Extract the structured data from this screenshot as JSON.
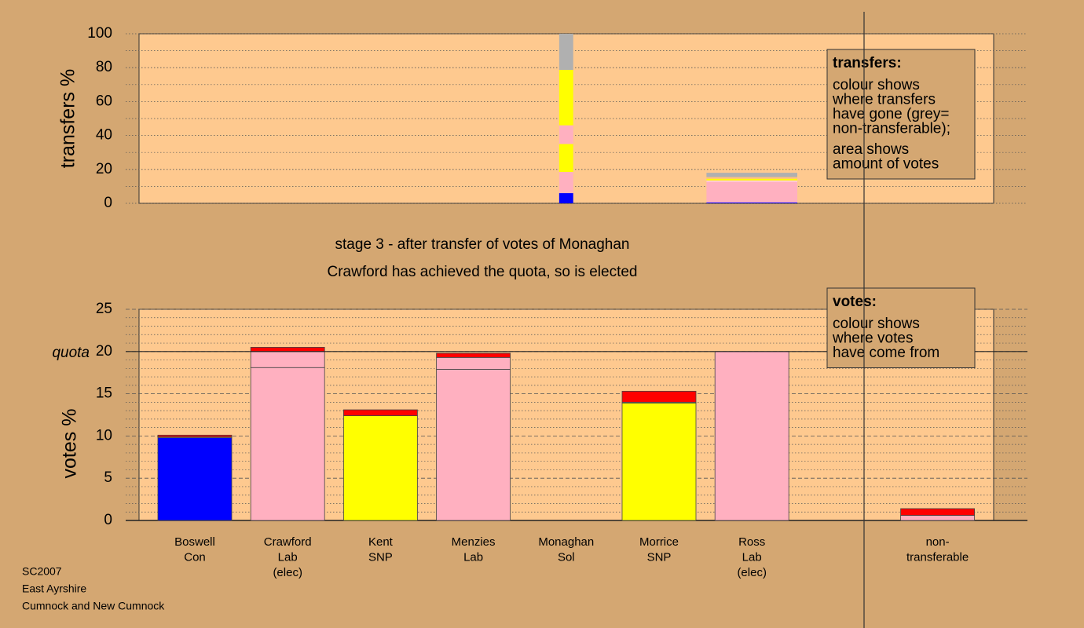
{
  "chart_data": [
    {
      "type": "transfer_bar",
      "ylabel": "transfers %",
      "ylim": [
        0,
        100
      ],
      "yticks": [
        0,
        20,
        40,
        60,
        80,
        100
      ],
      "minor_yticks": [
        10,
        30,
        50,
        70,
        90
      ],
      "legend": {
        "title": "transfers:",
        "paragraphs": [
          [
            "colour shows",
            "where transfers",
            "have gone (grey=",
            "non-transferable);"
          ],
          [
            "area shows",
            "amount of votes"
          ]
        ]
      },
      "bars": [
        {
          "category": 4,
          "width": 0.19,
          "segments": [
            {
              "color": "#0000ff",
              "value": 6
            },
            {
              "color": "#ffb0c0",
              "value": 12.5
            },
            {
              "color": "#ffff00",
              "value": 16.5
            },
            {
              "color": "#ffb0c0",
              "value": 11
            },
            {
              "color": "#ffff00",
              "value": 32.7
            },
            {
              "color": "#b0b0b0",
              "value": 21.3
            }
          ]
        },
        {
          "category": 6,
          "width": 1.23,
          "segments": [
            {
              "color": "#0000ff",
              "value": 0.5
            },
            {
              "color": "#ffb0c0",
              "value": 12
            },
            {
              "color": "#ffc8d0",
              "value": 1
            },
            {
              "color": "#ffff00",
              "value": 1
            },
            {
              "color": "#ffc080",
              "value": 1
            },
            {
              "color": "#b0b0b0",
              "value": 2.5
            }
          ]
        }
      ]
    },
    {
      "type": "stacked_bar",
      "title": [
        "stage 3 - after transfer of votes of Monaghan",
        "Crawford has achieved the quota, so is elected"
      ],
      "ylabel": "votes %",
      "ylim": [
        0,
        25
      ],
      "yticks": [
        0,
        5,
        10,
        15,
        20,
        25
      ],
      "minor_yticks": [
        1,
        2,
        3,
        4,
        6,
        7,
        8,
        9,
        11,
        12,
        13,
        14,
        16,
        17,
        18,
        19,
        21,
        22,
        23,
        24
      ],
      "quota": {
        "value": 20,
        "label": "quota"
      },
      "legend": {
        "title": "votes:",
        "paragraphs": [
          [
            "colour shows",
            "where votes",
            "have come from"
          ]
        ]
      },
      "categories": [
        [
          "Boswell",
          "Con"
        ],
        [
          "Crawford",
          "Lab",
          "(elec)"
        ],
        [
          "Kent",
          "SNP"
        ],
        [
          "Menzies",
          "Lab"
        ],
        [
          "Monaghan",
          "Sol"
        ],
        [
          "Morrice",
          "SNP"
        ],
        [
          "Ross",
          "Lab",
          "(elec)"
        ],
        null,
        [
          "non-",
          "transferable"
        ]
      ],
      "stacks": [
        [
          {
            "color": "#0000ff",
            "value": 9.8
          },
          {
            "color": "#ffb0c0",
            "value": 0.1
          },
          {
            "color": "#ff0000",
            "value": 0.2
          }
        ],
        [
          {
            "color": "#ffb0c0",
            "value": 18.1
          },
          {
            "color": "#ffb0c0",
            "value": 1.9
          },
          {
            "color": "#ff0000",
            "value": 0.5
          }
        ],
        [
          {
            "color": "#ffff00",
            "value": 12.4
          },
          {
            "color": "#ff0000",
            "value": 0.7
          }
        ],
        [
          {
            "color": "#ffb0c0",
            "value": 17.9
          },
          {
            "color": "#ffb0c0",
            "value": 1.4
          },
          {
            "color": "#ff0000",
            "value": 0.5
          }
        ],
        [],
        [
          {
            "color": "#ffff00",
            "value": 13.9
          },
          {
            "color": "#ffb0c0",
            "value": 0.1
          },
          {
            "color": "#ff0000",
            "value": 1.3
          }
        ],
        [
          {
            "color": "#ffb0c0",
            "value": 20
          }
        ],
        [],
        [
          {
            "color": "#ffb0c0",
            "value": 0.6
          },
          {
            "color": "#ff0000",
            "value": 0.8
          }
        ]
      ]
    }
  ],
  "footer": [
    "SC2007",
    "East Ayrshire",
    "Cumnock and New Cumnock"
  ]
}
